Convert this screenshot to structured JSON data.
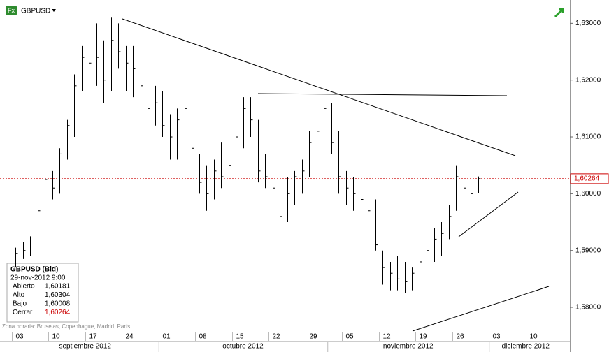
{
  "header": {
    "symbol": "GBPUSD",
    "icon": "Fx"
  },
  "timezone": "Zona horaria: Bruselas, Copenhague, Madrid, París",
  "info_box": {
    "title": "GBPUSD (Bid)",
    "time": "29-nov-2012 9:00",
    "rows": [
      [
        "Abierto",
        "1,60181"
      ],
      [
        "Alto",
        "1,60304"
      ],
      [
        "Bajo",
        "1,60008"
      ],
      [
        "Cerrar",
        "1,60264"
      ]
    ]
  },
  "chart_data": {
    "type": "hlc",
    "color": "#000000",
    "categories": [
      "03",
      null,
      null,
      null,
      null,
      "10",
      null,
      null,
      null,
      null,
      "17",
      null,
      null,
      null,
      null,
      "24",
      null,
      null,
      null,
      null,
      "01",
      null,
      null,
      null,
      null,
      "08",
      null,
      null,
      null,
      null,
      "15",
      null,
      null,
      null,
      null,
      "22",
      null,
      null,
      null,
      null,
      "29",
      null,
      null,
      null,
      null,
      "05",
      null,
      null,
      null,
      null,
      "12",
      null,
      null,
      null,
      null,
      "19",
      null,
      null,
      null,
      null,
      "26",
      null,
      null,
      null,
      null,
      "03",
      null,
      null,
      null,
      null,
      "10",
      null,
      null,
      null,
      null
    ],
    "months": [
      "septiembre 2012",
      "octubre 2012",
      "noviembre 2012",
      "diciembre 2012"
    ],
    "high": [
      1.5905,
      1.5915,
      1.5925,
      1.599,
      1.6035,
      1.604,
      1.608,
      1.613,
      1.621,
      1.626,
      1.628,
      1.63,
      1.627,
      1.631,
      1.63,
      1.626,
      1.626,
      1.627,
      1.62,
      1.619,
      1.618,
      1.614,
      1.615,
      1.621,
      1.617,
      1.607,
      1.605,
      1.606,
      1.609,
      1.607,
      1.612,
      1.617,
      1.617,
      1.613,
      1.607,
      1.605,
      1.604,
      1.603,
      1.604,
      1.606,
      1.611,
      1.613,
      1.6175,
      1.616,
      1.611,
      1.604,
      1.603,
      1.604,
      1.601,
      1.599,
      1.59,
      1.588,
      1.589,
      1.588,
      1.587,
      1.589,
      1.592,
      1.594,
      1.595,
      1.598,
      1.605,
      1.604,
      1.605,
      1.60304,
      null,
      null,
      null,
      null,
      null,
      null,
      null,
      null,
      null,
      null,
      null
    ],
    "low": [
      1.587,
      1.5885,
      1.589,
      1.5905,
      1.596,
      1.599,
      1.6,
      1.606,
      1.61,
      1.618,
      1.62,
      1.619,
      1.616,
      1.618,
      1.622,
      1.618,
      1.617,
      1.616,
      1.613,
      1.612,
      1.61,
      1.606,
      1.606,
      1.61,
      1.605,
      1.6,
      1.597,
      1.599,
      1.601,
      1.602,
      1.604,
      1.608,
      1.61,
      1.602,
      1.601,
      1.598,
      1.591,
      1.595,
      1.598,
      1.6,
      1.603,
      1.607,
      1.609,
      1.607,
      1.6,
      1.598,
      1.597,
      1.596,
      1.595,
      1.59,
      1.584,
      1.583,
      1.583,
      1.5825,
      1.583,
      1.584,
      1.586,
      1.588,
      1.589,
      1.592,
      1.597,
      1.599,
      1.596,
      1.60008,
      null,
      null,
      null,
      null,
      null,
      null,
      null,
      null,
      null,
      null,
      null
    ],
    "close": [
      1.5895,
      1.59,
      1.5915,
      1.597,
      1.6025,
      1.601,
      1.607,
      1.612,
      1.619,
      1.624,
      1.623,
      1.624,
      1.62,
      1.627,
      1.625,
      1.623,
      1.622,
      1.619,
      1.615,
      1.616,
      1.612,
      1.61,
      1.613,
      1.615,
      1.608,
      1.602,
      1.6,
      1.604,
      1.603,
      1.605,
      1.61,
      1.615,
      1.613,
      1.604,
      1.603,
      1.601,
      1.596,
      1.6,
      1.603,
      1.604,
      1.609,
      1.611,
      1.615,
      1.609,
      1.603,
      1.601,
      1.6,
      1.599,
      1.597,
      1.591,
      1.587,
      1.586,
      1.585,
      1.5845,
      1.586,
      1.588,
      1.59,
      1.592,
      1.593,
      1.596,
      1.603,
      1.601,
      1.6,
      1.60264,
      null,
      null,
      null,
      null,
      null,
      null,
      null,
      null,
      null,
      null,
      null
    ],
    "last": {
      "value": 1.60264,
      "label": "1,60264"
    },
    "ylim": [
      1.5757,
      1.6341
    ],
    "yticks": [
      {
        "value": 1.58,
        "label": "1,58000"
      },
      {
        "value": 1.59,
        "label": "1,59000"
      },
      {
        "value": 1.6,
        "label": "1,60000"
      },
      {
        "value": 1.61,
        "label": "1,61000"
      },
      {
        "value": 1.62,
        "label": "1,62000"
      },
      {
        "value": 1.63,
        "label": "1,63000"
      }
    ]
  }
}
